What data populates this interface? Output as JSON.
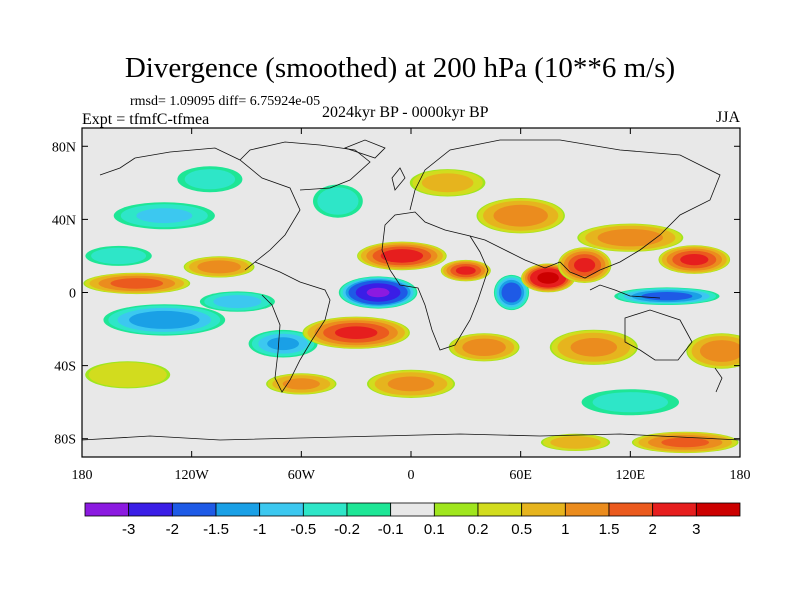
{
  "chart_data": {
    "type": "heatmap",
    "title": "Divergence (smoothed) at 200 hPa (10**6 m/s)",
    "stats_text": "rmsd= 1.09095 diff= 6.75924e-05",
    "experiment_text": "Expt = tfmfC-tfmea",
    "period_text": "2024kyr BP - 0000kyr BP",
    "season": "JJA",
    "x_range": [
      -180,
      180
    ],
    "y_range": [
      -90,
      90
    ],
    "x_ticks": [
      {
        "value": -180,
        "label": "180"
      },
      {
        "value": -120,
        "label": "120W"
      },
      {
        "value": -60,
        "label": "60W"
      },
      {
        "value": 0,
        "label": "0"
      },
      {
        "value": 60,
        "label": "60E"
      },
      {
        "value": 120,
        "label": "120E"
      },
      {
        "value": 180,
        "label": "180"
      }
    ],
    "y_ticks": [
      {
        "value": 80,
        "label": "80N"
      },
      {
        "value": 40,
        "label": "40N"
      },
      {
        "value": 0,
        "label": "0"
      },
      {
        "value": -40,
        "label": "40S"
      },
      {
        "value": -80,
        "label": "80S"
      }
    ],
    "levels": [
      -3,
      -2,
      -1.5,
      -1,
      -0.5,
      -0.2,
      -0.1,
      0.1,
      0.2,
      0.5,
      1,
      1.5,
      2,
      3
    ],
    "level_labels": [
      "-3",
      "-2",
      "-1.5",
      "-1",
      "-0.5",
      "-0.2",
      "-0.1",
      "0.1",
      "0.2",
      "0.5",
      "1",
      "1.5",
      "2",
      "3"
    ],
    "colors": [
      "#8b1ae0",
      "#3a1ee6",
      "#1e5ae6",
      "#1aa0e6",
      "#3cc8f0",
      "#2ee6c8",
      "#1ee696",
      "#e8e8e8",
      "#a0e61e",
      "#d2dc1e",
      "#e6b41e",
      "#eb8c1e",
      "#eb5a1e",
      "#e61e1e",
      "#cc0000"
    ],
    "field_blobs": [
      {
        "lon": -18,
        "lat": 0,
        "rlon": 22,
        "rlat": 9,
        "value": -4
      },
      {
        "lon": -135,
        "lat": -15,
        "rlon": 35,
        "rlat": 9,
        "value": -1.8
      },
      {
        "lon": -150,
        "lat": 5,
        "rlon": 30,
        "rlat": 6,
        "value": 1.6
      },
      {
        "lon": -105,
        "lat": 14,
        "rlon": 20,
        "rlat": 6,
        "value": 1.2
      },
      {
        "lon": -95,
        "lat": -5,
        "rlon": 22,
        "rlat": 6,
        "value": -1.2
      },
      {
        "lon": -70,
        "lat": -28,
        "rlon": 20,
        "rlat": 8,
        "value": -1.5
      },
      {
        "lon": -30,
        "lat": -22,
        "rlon": 30,
        "rlat": 9,
        "value": 2
      },
      {
        "lon": -5,
        "lat": 20,
        "rlon": 25,
        "rlat": 8,
        "value": 2.2
      },
      {
        "lon": 30,
        "lat": 12,
        "rlon": 14,
        "rlat": 6,
        "value": 2
      },
      {
        "lon": 55,
        "lat": 0,
        "rlon": 10,
        "rlat": 10,
        "value": -2.5
      },
      {
        "lon": 75,
        "lat": 8,
        "rlon": 15,
        "rlat": 8,
        "value": 3.2
      },
      {
        "lon": 95,
        "lat": 15,
        "rlon": 15,
        "rlat": 10,
        "value": 2
      },
      {
        "lon": 140,
        "lat": -2,
        "rlon": 30,
        "rlat": 5,
        "value": -2.2
      },
      {
        "lon": 155,
        "lat": 18,
        "rlon": 20,
        "rlat": 8,
        "value": 2
      },
      {
        "lon": 120,
        "lat": 30,
        "rlon": 30,
        "rlat": 8,
        "value": 1.2
      },
      {
        "lon": 60,
        "lat": 42,
        "rlon": 25,
        "rlat": 10,
        "value": 1.2
      },
      {
        "lon": -135,
        "lat": 42,
        "rlon": 30,
        "rlat": 8,
        "value": -1
      },
      {
        "lon": -160,
        "lat": 20,
        "rlon": 20,
        "rlat": 6,
        "value": -0.8
      },
      {
        "lon": -40,
        "lat": 50,
        "rlon": 15,
        "rlat": 10,
        "value": -0.8
      },
      {
        "lon": -110,
        "lat": 62,
        "rlon": 20,
        "rlat": 8,
        "value": -0.6
      },
      {
        "lon": 20,
        "lat": 60,
        "rlon": 22,
        "rlat": 8,
        "value": 0.5
      },
      {
        "lon": 40,
        "lat": -30,
        "rlon": 20,
        "rlat": 8,
        "value": 1.2
      },
      {
        "lon": 100,
        "lat": -30,
        "rlon": 25,
        "rlat": 10,
        "value": 1
      },
      {
        "lon": 170,
        "lat": -32,
        "rlon": 20,
        "rlat": 10,
        "value": 1.2
      },
      {
        "lon": -155,
        "lat": -45,
        "rlon": 25,
        "rlat": 8,
        "value": 0.4
      },
      {
        "lon": -60,
        "lat": -50,
        "rlon": 20,
        "rlat": 6,
        "value": 1
      },
      {
        "lon": 0,
        "lat": -50,
        "rlon": 25,
        "rlat": 8,
        "value": 1
      },
      {
        "lon": 120,
        "lat": -60,
        "rlon": 30,
        "rlat": 8,
        "value": -0.6
      },
      {
        "lon": 150,
        "lat": -82,
        "rlon": 30,
        "rlat": 6,
        "value": 1.5
      },
      {
        "lon": 90,
        "lat": -82,
        "rlon": 20,
        "rlat": 5,
        "value": 0.6
      }
    ]
  }
}
